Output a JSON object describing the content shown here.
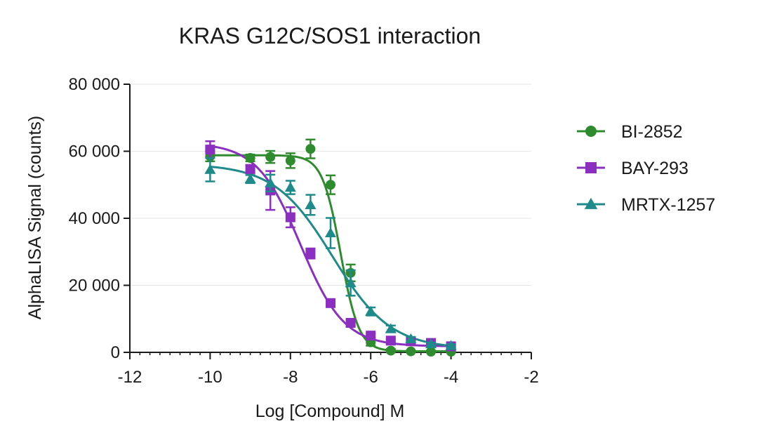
{
  "chart_data": {
    "type": "scatter",
    "title": "KRAS G12C/SOS1 interaction",
    "xlabel": "Log [Compound] M",
    "ylabel": "AlphaLISA Signal (counts)",
    "xlim": [
      -12,
      -2
    ],
    "ylim": [
      0,
      80000
    ],
    "x_ticks": [
      -12,
      -10,
      -8,
      -6,
      -4,
      -2
    ],
    "x_tick_labels": [
      "-12",
      "-10",
      "-8",
      "-6",
      "-4",
      "-2"
    ],
    "y_ticks": [
      0,
      20000,
      40000,
      60000,
      80000
    ],
    "y_tick_labels": [
      "0",
      "20 000",
      "40 000",
      "60 000",
      "80 000"
    ],
    "grid": "horizontal",
    "legend_position": "right",
    "series": [
      {
        "name": "BI-2852",
        "color": "#2e8b2e",
        "marker": "circle",
        "x": [
          -10,
          -9,
          -8.5,
          -8,
          -7.5,
          -7,
          -6.5,
          -6,
          -5.5,
          -5,
          -4.5,
          -4
        ],
        "y": [
          58500,
          58000,
          58300,
          57200,
          60700,
          50000,
          23700,
          3000,
          500,
          300,
          200,
          200
        ],
        "err": [
          1500,
          1000,
          1800,
          2200,
          2800,
          2800,
          2500,
          1000,
          500,
          300,
          300,
          300
        ],
        "fit": {
          "top": 58800,
          "bottom": 300,
          "logec50": -6.75,
          "hill": 1.9
        }
      },
      {
        "name": "BAY-293",
        "color": "#8a2fc0",
        "marker": "square",
        "x": [
          -10,
          -9,
          -8.5,
          -8,
          -7.5,
          -7,
          -6.5,
          -6,
          -5.5,
          -5,
          -4.5,
          -4
        ],
        "y": [
          60500,
          54700,
          48300,
          40300,
          29500,
          14700,
          8800,
          5000,
          3500,
          3300,
          2800,
          1800
        ],
        "err": [
          2500,
          1200,
          5800,
          3000,
          1500,
          1000,
          800,
          600,
          500,
          400,
          400,
          400
        ],
        "fit": {
          "top": 62500,
          "bottom": 1800,
          "logec50": -7.75,
          "hill": 0.8
        }
      },
      {
        "name": "MRTX-1257",
        "color": "#1f8a8a",
        "marker": "triangle",
        "x": [
          -10,
          -9,
          -8.5,
          -8,
          -7.5,
          -7,
          -6.5,
          -6,
          -5.5,
          -5,
          -4.5,
          -4
        ],
        "y": [
          54500,
          51700,
          50500,
          49200,
          44000,
          35600,
          20700,
          12200,
          7000,
          4000,
          2500,
          2000
        ],
        "err": [
          3500,
          1200,
          2500,
          2000,
          3000,
          4500,
          3800,
          1200,
          1000,
          600,
          400,
          400
        ],
        "fit": {
          "top": 56200,
          "bottom": 1000,
          "logec50": -6.95,
          "hill": 0.6
        }
      }
    ]
  }
}
